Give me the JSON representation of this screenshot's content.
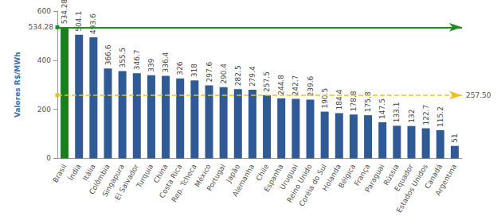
{
  "chart_data": {
    "type": "bar",
    "y_label": "Valores R$/MWh",
    "categories": [
      "Brasil",
      "Índia",
      "Itália",
      "Colômbia",
      "Singapura",
      "El Salvador",
      "Turquia",
      "China",
      "Costa Rica",
      "Rep. Tcheca",
      "México",
      "Portugal",
      "Japão",
      "Alemanha",
      "Chile",
      "Espanha",
      "Uruguai",
      "Reino Unido",
      "Coréia do Sul",
      "Holanda",
      "Bélgica",
      "França",
      "Paraguai",
      "Rússia",
      "Equador",
      "Estados Unidos",
      "Canadá",
      "Argentina"
    ],
    "values": [
      534.28,
      504.1,
      493.6,
      366.6,
      355.5,
      346.7,
      339,
      336.4,
      326,
      318,
      297.6,
      290.4,
      282.5,
      279.4,
      257.5,
      244.8,
      242.7,
      239.6,
      190.5,
      184.4,
      178.8,
      175.8,
      147.5,
      133.1,
      132,
      122.7,
      115.2,
      51
    ],
    "colors": [
      "#1e7b1e",
      "#2f5a96",
      "#2f5a96",
      "#2f5a96",
      "#2f5a96",
      "#2f5a96",
      "#2f5a96",
      "#2f5a96",
      "#2f5a96",
      "#2f5a96",
      "#2f5a96",
      "#2f5a96",
      "#2f5a96",
      "#2f5a96",
      "#2f5a96",
      "#2f5a96",
      "#2f5a96",
      "#2f5a96",
      "#2f5a96",
      "#2f5a96",
      "#2f5a96",
      "#2f5a96",
      "#2f5a96",
      "#2f5a96",
      "#2f5a96",
      "#2f5a96",
      "#2f5a96",
      "#2f5a96"
    ],
    "data_labels": true,
    "ylim": [
      0,
      600
    ],
    "yticks": [
      0,
      200,
      400,
      600
    ],
    "grid": false,
    "reference_lines": [
      {
        "value": 534.28,
        "label": "534.28",
        "color": "#1e8c1e",
        "line_style": "solid"
      },
      {
        "value": 257.5,
        "label": "257.50",
        "color": "#f0c020",
        "line_style": "dashed"
      }
    ]
  }
}
